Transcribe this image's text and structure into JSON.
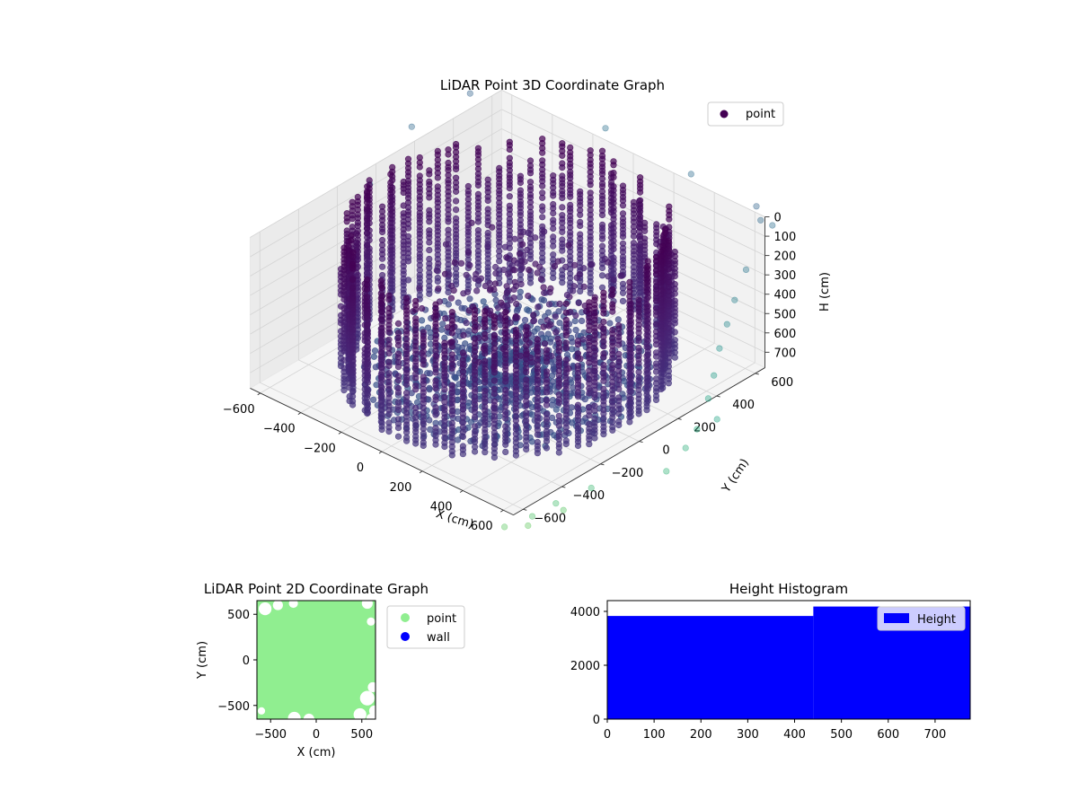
{
  "chart_data": [
    {
      "type": "scatter",
      "projection": "3d",
      "title": "LiDAR Point 3D Coordinate Graph",
      "xlabel": "X (cm)",
      "ylabel": "Y (cm)",
      "zlabel": "H (cm)",
      "xlim": [
        -650,
        650
      ],
      "ylim": [
        -650,
        650
      ],
      "zlim": [
        780,
        0
      ],
      "z_axis_inverted": true,
      "xticks": [
        -600,
        -400,
        -200,
        0,
        200,
        400,
        600
      ],
      "yticks": [
        -600,
        -400,
        -200,
        0,
        200,
        400,
        600
      ],
      "zticks": [
        0,
        100,
        200,
        300,
        400,
        500,
        600,
        700
      ],
      "colormap": "viridis, colored by height",
      "legend": {
        "entries": [
          "point"
        ],
        "placement": "top-right",
        "marker_color": "#440154"
      },
      "grid": true,
      "structure": {
        "wall_radius_cm": 580,
        "wall_height_range_cm": [
          0,
          750
        ],
        "floor_radius_cm": 520,
        "floor_height_cm": 760
      }
    },
    {
      "type": "scatter",
      "title": "LiDAR Point 2D Coordinate Graph",
      "xlabel": "X (cm)",
      "ylabel": "Y (cm)",
      "xlim": [
        -650,
        650
      ],
      "ylim": [
        -650,
        650
      ],
      "xticks": [
        -500,
        0,
        500
      ],
      "yticks": [
        -500,
        0,
        500
      ],
      "series": [
        {
          "name": "point",
          "color": "#90ee90"
        },
        {
          "name": "wall",
          "color": "#0000ff"
        }
      ],
      "legend_placement": "outside right"
    },
    {
      "type": "bar",
      "title": "Height Histogram",
      "xlim": [
        0,
        775
      ],
      "ylim": [
        0,
        4400
      ],
      "xticks": [
        0,
        100,
        200,
        300,
        400,
        500,
        600,
        700
      ],
      "yticks": [
        0,
        2000,
        4000
      ],
      "series": [
        {
          "name": "Height",
          "color": "#0000ff",
          "bins": [
            {
              "from": 0,
              "to": 440,
              "count": 3830
            },
            {
              "from": 440,
              "to": 775,
              "count": 4180
            }
          ]
        }
      ],
      "legend_placement": "top-right"
    }
  ]
}
